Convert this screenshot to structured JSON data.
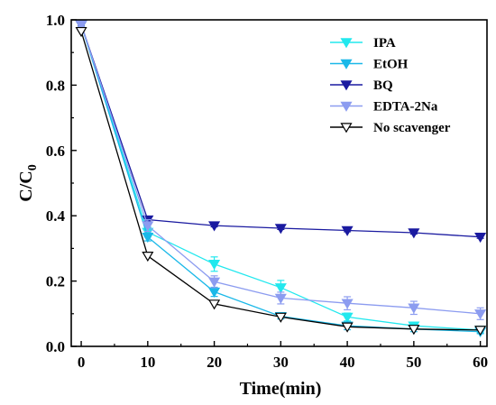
{
  "chart_data": {
    "type": "line",
    "title": "",
    "xlabel": "Time(min)",
    "ylabel_main": "C/C",
    "ylabel_sub": "0",
    "xlim": [
      -1.5,
      61
    ],
    "ylim": [
      0,
      1.0
    ],
    "xticks": [
      0,
      10,
      20,
      30,
      40,
      50,
      60
    ],
    "yticks": [
      0.0,
      0.2,
      0.4,
      0.6,
      0.8,
      1.0
    ],
    "ytick_labels": [
      "0.0",
      "0.2",
      "0.4",
      "0.6",
      "0.8",
      "1.0"
    ],
    "grid": false,
    "legend_position": "top-right",
    "x": [
      0,
      10,
      20,
      30,
      40,
      50,
      60
    ],
    "series": [
      {
        "name": "IPA",
        "color": "#22e8ee",
        "marker": "triangle-down-filled",
        "values": [
          0.985,
          0.35,
          0.252,
          0.18,
          0.09,
          0.063,
          0.05
        ],
        "errors": [
          0.005,
          0.015,
          0.022,
          0.022,
          0.012,
          0.01,
          0.008
        ]
      },
      {
        "name": "EtOH",
        "color": "#1ab8e8",
        "marker": "triangle-down-filled",
        "values": [
          0.985,
          0.335,
          0.167,
          0.092,
          0.063,
          0.053,
          0.045
        ],
        "errors": [
          0.005,
          0.012,
          0.014,
          0.008,
          0.012,
          0.008,
          0.006
        ]
      },
      {
        "name": "BQ",
        "color": "#1a1aa0",
        "marker": "triangle-down-filled",
        "values": [
          0.985,
          0.388,
          0.37,
          0.362,
          0.355,
          0.348,
          0.335
        ],
        "errors": [
          0.004,
          0.006,
          0.004,
          0.004,
          0.004,
          0.004,
          0.004
        ]
      },
      {
        "name": "EDTA-2Na",
        "color": "#8c9cf0",
        "marker": "triangle-down-filled",
        "values": [
          0.985,
          0.37,
          0.198,
          0.148,
          0.132,
          0.118,
          0.1
        ],
        "errors": [
          0.005,
          0.018,
          0.018,
          0.018,
          0.02,
          0.02,
          0.018
        ]
      },
      {
        "name": "No scavenger",
        "color": "#000000",
        "marker": "triangle-down-open",
        "values": [
          0.965,
          0.277,
          0.13,
          0.09,
          0.06,
          0.053,
          0.05
        ],
        "errors": [
          0,
          0,
          0,
          0,
          0,
          0,
          0
        ]
      }
    ]
  }
}
